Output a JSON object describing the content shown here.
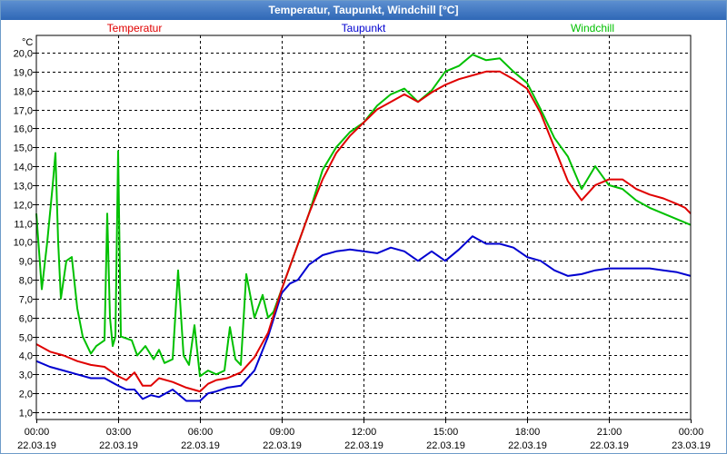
{
  "window": {
    "title": "Temperatur, Taupunkt, Windchill [°C]"
  },
  "chart_data": {
    "type": "line",
    "title": "Temperatur, Taupunkt, Windchill [°C]",
    "ylabel": "°C",
    "xlabel": "",
    "ylim": [
      1,
      20
    ],
    "xlim": [
      0,
      24
    ],
    "grid": true,
    "y_ticks": [
      "1,0",
      "2,0",
      "3,0",
      "4,0",
      "5,0",
      "6,0",
      "7,0",
      "8,0",
      "9,0",
      "10,0",
      "11,0",
      "12,0",
      "13,0",
      "14,0",
      "15,0",
      "16,0",
      "17,0",
      "18,0",
      "19,0",
      "20,0"
    ],
    "x_ticks": [
      {
        "x": 0,
        "time": "00:00",
        "date": "22.03.19"
      },
      {
        "x": 3,
        "time": "03:00",
        "date": "22.03.19"
      },
      {
        "x": 6,
        "time": "06:00",
        "date": "22.03.19"
      },
      {
        "x": 9,
        "time": "09:00",
        "date": "22.03.19"
      },
      {
        "x": 12,
        "time": "12:00",
        "date": "22.03.19"
      },
      {
        "x": 15,
        "time": "15:00",
        "date": "22.03.19"
      },
      {
        "x": 18,
        "time": "18:00",
        "date": "22.03.19"
      },
      {
        "x": 21,
        "time": "21:00",
        "date": "22.03.19"
      },
      {
        "x": 24,
        "time": "00:00",
        "date": "23.03.19"
      }
    ],
    "series": [
      {
        "name": "Temperatur",
        "color": "#e00000",
        "points": [
          [
            0,
            4.6
          ],
          [
            0.5,
            4.2
          ],
          [
            1,
            4.0
          ],
          [
            1.5,
            3.7
          ],
          [
            2,
            3.5
          ],
          [
            2.5,
            3.4
          ],
          [
            2.8,
            3.1
          ],
          [
            3,
            2.9
          ],
          [
            3.3,
            2.7
          ],
          [
            3.6,
            3.1
          ],
          [
            3.9,
            2.4
          ],
          [
            4.2,
            2.4
          ],
          [
            4.5,
            2.8
          ],
          [
            5,
            2.6
          ],
          [
            5.5,
            2.3
          ],
          [
            6,
            2.1
          ],
          [
            6.3,
            2.5
          ],
          [
            6.6,
            2.7
          ],
          [
            7,
            2.8
          ],
          [
            7.5,
            3.1
          ],
          [
            8,
            3.9
          ],
          [
            8.5,
            5.2
          ],
          [
            9,
            7.5
          ],
          [
            9.5,
            9.5
          ],
          [
            10,
            11.5
          ],
          [
            10.5,
            13.3
          ],
          [
            11,
            14.7
          ],
          [
            11.5,
            15.6
          ],
          [
            12,
            16.3
          ],
          [
            12.5,
            17.0
          ],
          [
            13,
            17.4
          ],
          [
            13.5,
            17.8
          ],
          [
            14,
            17.4
          ],
          [
            14.5,
            17.9
          ],
          [
            15,
            18.3
          ],
          [
            15.5,
            18.6
          ],
          [
            16,
            18.8
          ],
          [
            16.5,
            19.0
          ],
          [
            17,
            19.0
          ],
          [
            17.5,
            18.6
          ],
          [
            18,
            18.1
          ],
          [
            18.5,
            16.8
          ],
          [
            19,
            15.0
          ],
          [
            19.5,
            13.2
          ],
          [
            20,
            12.2
          ],
          [
            20.5,
            13.0
          ],
          [
            21,
            13.3
          ],
          [
            21.5,
            13.3
          ],
          [
            22,
            12.8
          ],
          [
            22.5,
            12.5
          ],
          [
            23,
            12.3
          ],
          [
            23.5,
            12.0
          ],
          [
            23.8,
            11.8
          ],
          [
            24,
            11.5
          ]
        ]
      },
      {
        "name": "Taupunkt",
        "color": "#0000d0",
        "points": [
          [
            0,
            3.7
          ],
          [
            0.5,
            3.4
          ],
          [
            1,
            3.2
          ],
          [
            1.5,
            3.0
          ],
          [
            2,
            2.8
          ],
          [
            2.5,
            2.8
          ],
          [
            3,
            2.4
          ],
          [
            3.3,
            2.2
          ],
          [
            3.6,
            2.2
          ],
          [
            3.9,
            1.7
          ],
          [
            4.2,
            1.9
          ],
          [
            4.5,
            1.8
          ],
          [
            5,
            2.2
          ],
          [
            5.5,
            1.6
          ],
          [
            6,
            1.6
          ],
          [
            6.3,
            2.0
          ],
          [
            6.6,
            2.1
          ],
          [
            7,
            2.3
          ],
          [
            7.5,
            2.4
          ],
          [
            8,
            3.2
          ],
          [
            8.5,
            5.0
          ],
          [
            9,
            7.3
          ],
          [
            9.3,
            7.8
          ],
          [
            9.6,
            8.0
          ],
          [
            10,
            8.8
          ],
          [
            10.5,
            9.3
          ],
          [
            11,
            9.5
          ],
          [
            11.5,
            9.6
          ],
          [
            12,
            9.5
          ],
          [
            12.5,
            9.4
          ],
          [
            13,
            9.7
          ],
          [
            13.5,
            9.5
          ],
          [
            14,
            9.0
          ],
          [
            14.5,
            9.5
          ],
          [
            15,
            9.0
          ],
          [
            15.5,
            9.6
          ],
          [
            16,
            10.3
          ],
          [
            16.5,
            9.9
          ],
          [
            17,
            9.9
          ],
          [
            17.5,
            9.7
          ],
          [
            18,
            9.2
          ],
          [
            18.5,
            9.0
          ],
          [
            19,
            8.5
          ],
          [
            19.5,
            8.2
          ],
          [
            20,
            8.3
          ],
          [
            20.5,
            8.5
          ],
          [
            21,
            8.6
          ],
          [
            21.5,
            8.6
          ],
          [
            22,
            8.6
          ],
          [
            22.5,
            8.6
          ],
          [
            23,
            8.5
          ],
          [
            23.5,
            8.4
          ],
          [
            24,
            8.2
          ]
        ]
      },
      {
        "name": "Windchill",
        "color": "#00c000",
        "points": [
          [
            0,
            11.5
          ],
          [
            0.2,
            7.5
          ],
          [
            0.4,
            10.0
          ],
          [
            0.6,
            13.0
          ],
          [
            0.7,
            14.7
          ],
          [
            0.8,
            10.0
          ],
          [
            0.9,
            7.0
          ],
          [
            1.1,
            9.0
          ],
          [
            1.3,
            9.2
          ],
          [
            1.5,
            6.5
          ],
          [
            1.7,
            5.0
          ],
          [
            2.0,
            4.1
          ],
          [
            2.2,
            4.5
          ],
          [
            2.5,
            4.8
          ],
          [
            2.6,
            11.5
          ],
          [
            2.7,
            6.0
          ],
          [
            2.8,
            4.5
          ],
          [
            2.9,
            5.0
          ],
          [
            3.0,
            14.8
          ],
          [
            3.1,
            5.0
          ],
          [
            3.5,
            4.8
          ],
          [
            3.7,
            4.0
          ],
          [
            4.0,
            4.5
          ],
          [
            4.3,
            3.8
          ],
          [
            4.5,
            4.3
          ],
          [
            4.7,
            3.6
          ],
          [
            5.0,
            3.8
          ],
          [
            5.2,
            8.5
          ],
          [
            5.4,
            4.0
          ],
          [
            5.6,
            3.5
          ],
          [
            5.8,
            5.6
          ],
          [
            6.0,
            2.9
          ],
          [
            6.3,
            3.2
          ],
          [
            6.6,
            3.0
          ],
          [
            6.9,
            3.2
          ],
          [
            7.1,
            5.5
          ],
          [
            7.3,
            3.8
          ],
          [
            7.5,
            3.5
          ],
          [
            7.7,
            8.3
          ],
          [
            8.0,
            6.0
          ],
          [
            8.3,
            7.2
          ],
          [
            8.5,
            6.0
          ],
          [
            8.7,
            6.3
          ],
          [
            9.0,
            7.5
          ],
          [
            9.5,
            9.5
          ],
          [
            10,
            11.5
          ],
          [
            10.5,
            13.8
          ],
          [
            11,
            15.0
          ],
          [
            11.5,
            15.8
          ],
          [
            12,
            16.3
          ],
          [
            12.5,
            17.2
          ],
          [
            13,
            17.8
          ],
          [
            13.5,
            18.1
          ],
          [
            14,
            17.4
          ],
          [
            14.5,
            18.0
          ],
          [
            15,
            19.0
          ],
          [
            15.5,
            19.3
          ],
          [
            16,
            19.9
          ],
          [
            16.5,
            19.6
          ],
          [
            17,
            19.7
          ],
          [
            17.5,
            19.0
          ],
          [
            18,
            18.4
          ],
          [
            18.5,
            17.0
          ],
          [
            19,
            15.5
          ],
          [
            19.5,
            14.5
          ],
          [
            20,
            12.8
          ],
          [
            20.5,
            14.0
          ],
          [
            21,
            13.0
          ],
          [
            21.5,
            12.8
          ],
          [
            22,
            12.2
          ],
          [
            22.5,
            11.8
          ],
          [
            23,
            11.5
          ],
          [
            23.5,
            11.2
          ],
          [
            24,
            10.9
          ]
        ]
      }
    ]
  }
}
